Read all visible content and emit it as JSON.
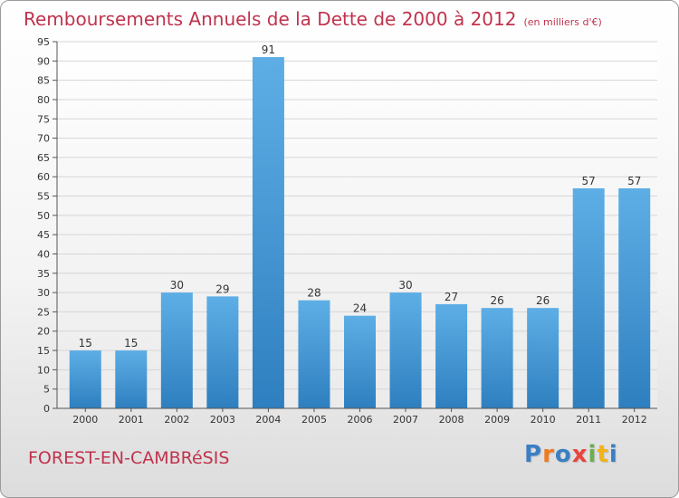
{
  "title": {
    "main": "Remboursements Annuels de la Dette de 2000 à 2012",
    "unit": "(en milliers d'€)"
  },
  "commune": "FOREST-EN-CAMBRéSIS",
  "logo": {
    "text": "Proxiti",
    "letter_colors": [
      "#3a7fc4",
      "#f07b1e",
      "#3a7fc4",
      "#e8463c",
      "#6ab04c",
      "#f2b31b",
      "#3a7fc4"
    ]
  },
  "colors": {
    "title": "#c0334d",
    "bar_top": "#5eaee6",
    "bar_bottom": "#2e7fbf",
    "grid": "#d6d6d6",
    "axis": "#555555"
  },
  "chart_data": {
    "type": "bar",
    "categories": [
      "2000",
      "2001",
      "2002",
      "2003",
      "2004",
      "2005",
      "2006",
      "2007",
      "2008",
      "2009",
      "2010",
      "2011",
      "2012"
    ],
    "values": [
      15,
      15,
      30,
      29,
      91,
      28,
      24,
      30,
      27,
      26,
      26,
      57,
      57
    ],
    "ylim": [
      0,
      95
    ],
    "yticks": [
      0,
      5,
      10,
      15,
      20,
      25,
      30,
      35,
      40,
      45,
      50,
      55,
      60,
      65,
      70,
      75,
      80,
      85,
      90,
      95
    ],
    "grid": true,
    "legend": "none"
  }
}
